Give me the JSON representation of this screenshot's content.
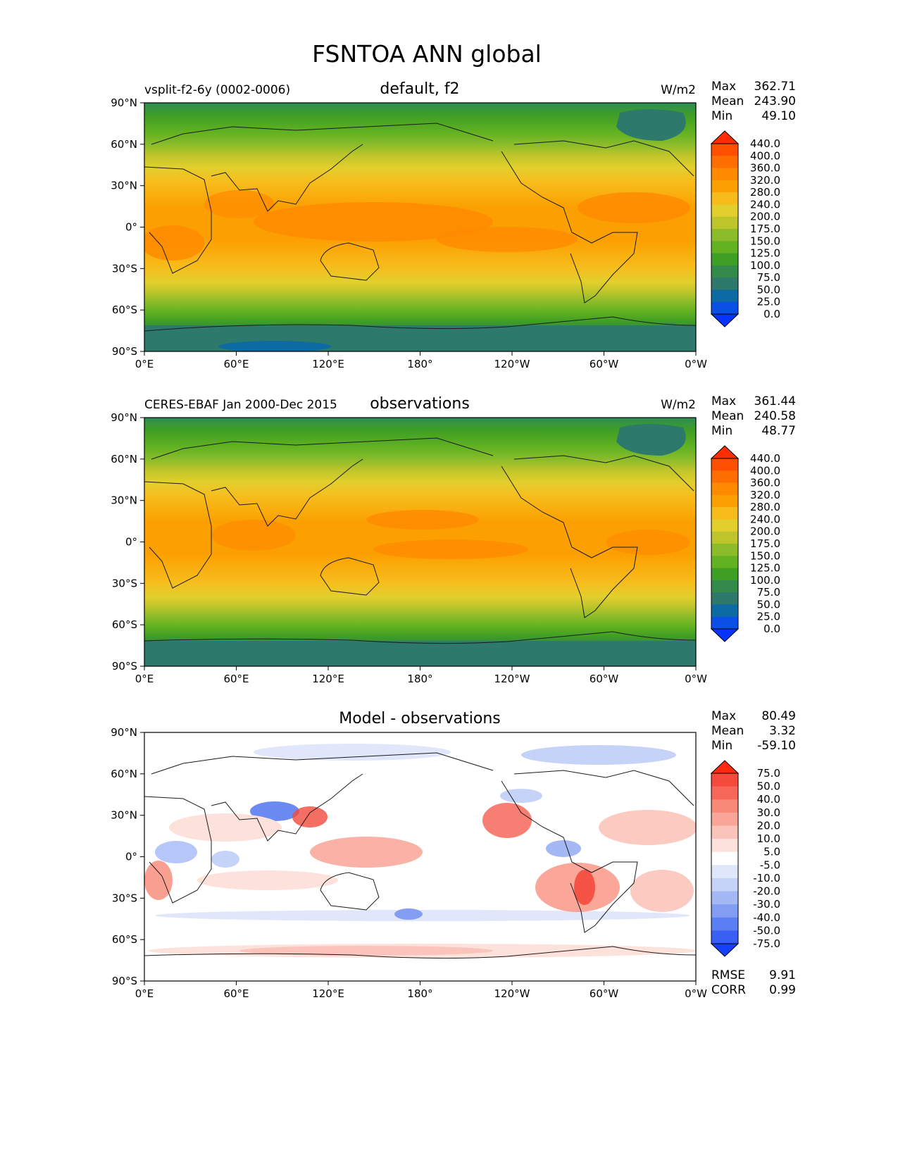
{
  "title": "FSNTOA ANN global",
  "x_ticks": [
    "0°E",
    "60°E",
    "120°E",
    "180°",
    "120°W",
    "60°W",
    "0°W"
  ],
  "y_ticks": [
    "90°N",
    "60°N",
    "30°N",
    "0°",
    "30°S",
    "60°S",
    "90°S"
  ],
  "panels": [
    {
      "id": "model",
      "left_label": "vsplit-f2-6y (0002-0006)",
      "center_label": "default, f2",
      "units": "W/m2",
      "stats": {
        "max_label": "Max",
        "max": "362.71",
        "mean_label": "Mean",
        "mean": "243.90",
        "min_label": "Min",
        "min": "49.10"
      },
      "colorbar_levels": [
        "440.0",
        "400.0",
        "360.0",
        "320.0",
        "280.0",
        "240.0",
        "200.0",
        "175.0",
        "150.0",
        "125.0",
        "100.0",
        "75.0",
        "50.0",
        "25.0",
        "0.0"
      ],
      "colorbar_colors": [
        "#ff2d00",
        "#ff5000",
        "#ff6e00",
        "#ff8a00",
        "#fba000",
        "#f7bc1c",
        "#e2cf2d",
        "#bec52a",
        "#8cbc2a",
        "#62b221",
        "#3f9e24",
        "#348a4a",
        "#2d7a6c",
        "#0d6aa2",
        "#0a50e6",
        "#0534ff"
      ]
    },
    {
      "id": "obs",
      "left_label": "CERES-EBAF Jan 2000-Dec 2015",
      "center_label": "observations",
      "units": "W/m2",
      "stats": {
        "max_label": "Max",
        "max": "361.44",
        "mean_label": "Mean",
        "mean": "240.58",
        "min_label": "Min",
        "min": "48.77"
      },
      "colorbar_levels": [
        "440.0",
        "400.0",
        "360.0",
        "320.0",
        "280.0",
        "240.0",
        "200.0",
        "175.0",
        "150.0",
        "125.0",
        "100.0",
        "75.0",
        "50.0",
        "25.0",
        "0.0"
      ],
      "colorbar_colors": [
        "#ff2d00",
        "#ff5000",
        "#ff6e00",
        "#ff8a00",
        "#fba000",
        "#f7bc1c",
        "#e2cf2d",
        "#bec52a",
        "#8cbc2a",
        "#62b221",
        "#3f9e24",
        "#348a4a",
        "#2d7a6c",
        "#0d6aa2",
        "#0a50e6",
        "#0534ff"
      ]
    },
    {
      "id": "diff",
      "left_label": "",
      "center_label": "Model - observations",
      "units": "",
      "stats": {
        "max_label": "Max",
        "max": "80.49",
        "mean_label": "Mean",
        "mean": "3.32",
        "min_label": "Min",
        "min": "-59.10"
      },
      "colorbar_levels": [
        "75.0",
        "50.0",
        "40.0",
        "30.0",
        "20.0",
        "10.0",
        "5.0",
        "-5.0",
        "-10.0",
        "-20.0",
        "-30.0",
        "-40.0",
        "-50.0",
        "-75.0"
      ],
      "colorbar_colors": [
        "#ff2a10",
        "#f34a3c",
        "#f6675a",
        "#f88877",
        "#f9a597",
        "#fbc4ba",
        "#fde2dc",
        "#ffffff",
        "#e1e7fb",
        "#c6d3f9",
        "#a5b8f6",
        "#839df3",
        "#5b7ef2",
        "#3a5ff4",
        "#1640ff"
      ],
      "rmse_label": "RMSE",
      "rmse": "9.91",
      "corr_label": "CORR",
      "corr": "0.99"
    }
  ]
}
